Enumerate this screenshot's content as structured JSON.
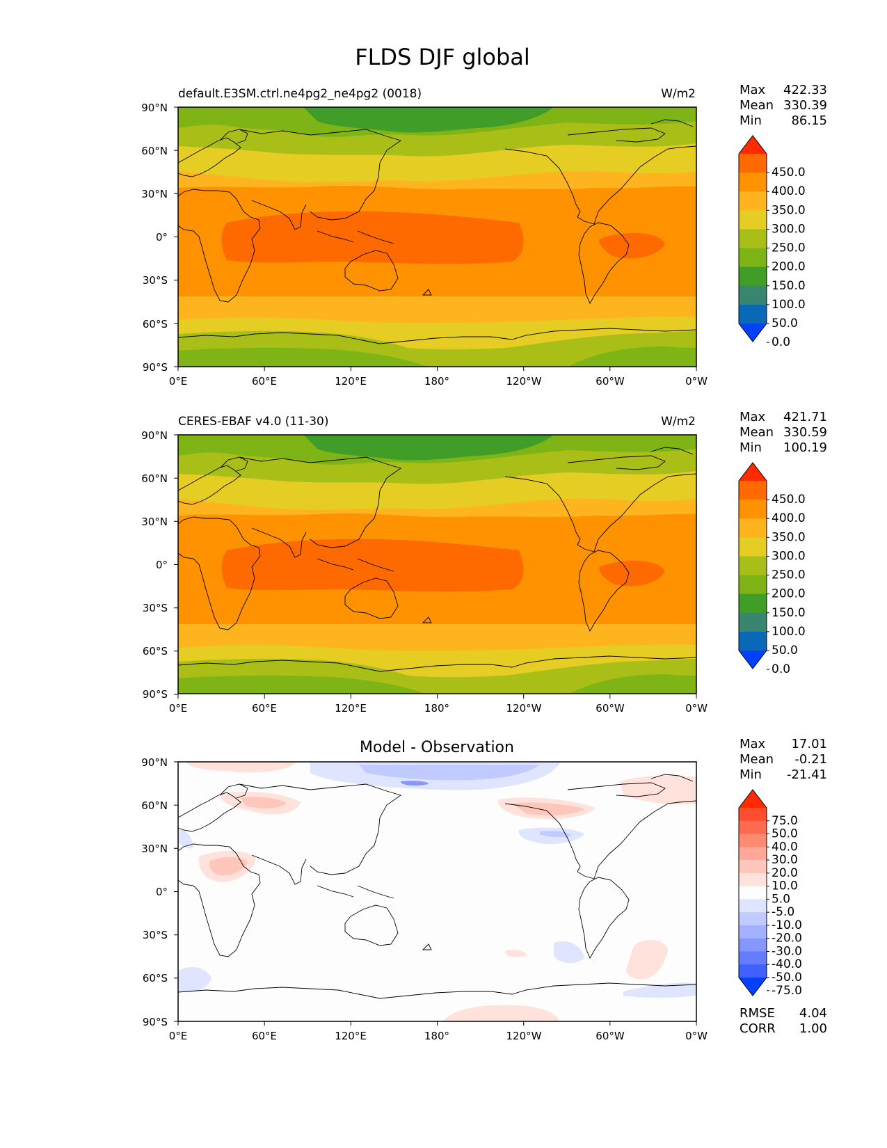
{
  "figure": {
    "title": "FLDS DJF global"
  },
  "axes": {
    "lat_labels": [
      "90°N",
      "60°N",
      "30°N",
      "0°",
      "30°S",
      "60°S",
      "90°S"
    ],
    "lon_labels": [
      "0°E",
      "60°E",
      "120°E",
      "180°",
      "120°W",
      "60°W",
      "0°W"
    ]
  },
  "panels": [
    {
      "id": "test",
      "left_title": "default.E3SM.ctrl.ne4pg2_ne4pg2 (0018)",
      "center_title": "",
      "units": "W/m2",
      "stats": [
        {
          "label": "Max",
          "value": "422.33"
        },
        {
          "label": "Mean",
          "value": "330.39"
        },
        {
          "label": "Min",
          "value": "86.15"
        }
      ],
      "colorbar": {
        "ticks": [
          "450.0",
          "400.0",
          "350.0",
          "300.0",
          "250.0",
          "200.0",
          "150.0",
          "100.0",
          "50.0",
          "0.0"
        ],
        "colors": [
          "#ff2a00",
          "#ff6a00",
          "#ff9200",
          "#fdb41e",
          "#e6cd24",
          "#aabe18",
          "#7eb415",
          "#3f9d28",
          "#3a8570",
          "#0a68b8",
          "#0040ff"
        ]
      }
    },
    {
      "id": "ref",
      "left_title": "CERES-EBAF v4.0 (11-30)",
      "center_title": "",
      "units": "W/m2",
      "stats": [
        {
          "label": "Max",
          "value": "421.71"
        },
        {
          "label": "Mean",
          "value": "330.59"
        },
        {
          "label": "Min",
          "value": "100.19"
        }
      ],
      "colorbar": {
        "ticks": [
          "450.0",
          "400.0",
          "350.0",
          "300.0",
          "250.0",
          "200.0",
          "150.0",
          "100.0",
          "50.0",
          "0.0"
        ],
        "colors": [
          "#ff2a00",
          "#ff6a00",
          "#ff9200",
          "#fdb41e",
          "#e6cd24",
          "#aabe18",
          "#7eb415",
          "#3f9d28",
          "#3a8570",
          "#0a68b8",
          "#0040ff"
        ]
      }
    },
    {
      "id": "diff",
      "left_title": "",
      "center_title": "Model - Observation",
      "units": "",
      "stats": [
        {
          "label": "Max",
          "value": "17.01"
        },
        {
          "label": "Mean",
          "value": "-0.21"
        },
        {
          "label": "Min",
          "value": "-21.41"
        }
      ],
      "colorbar": {
        "ticks": [
          "75.0",
          "50.0",
          "40.0",
          "30.0",
          "20.0",
          "10.0",
          "5.0",
          "-5.0",
          "-10.0",
          "-20.0",
          "-30.0",
          "-40.0",
          "-50.0",
          "-75.0"
        ],
        "colors": [
          "#ff2a00",
          "#ff4d30",
          "#ff6b50",
          "#ff8a72",
          "#ffa898",
          "#ffc7bc",
          "#ffe2dc",
          "#fdfdfd",
          "#dfe4ff",
          "#c1cbff",
          "#a3b1ff",
          "#8597ff",
          "#667cff",
          "#4060ff",
          "#0040ff"
        ]
      },
      "metrics": [
        {
          "label": "RMSE",
          "value": "4.04"
        },
        {
          "label": "CORR",
          "value": "1.00"
        }
      ]
    }
  ]
}
